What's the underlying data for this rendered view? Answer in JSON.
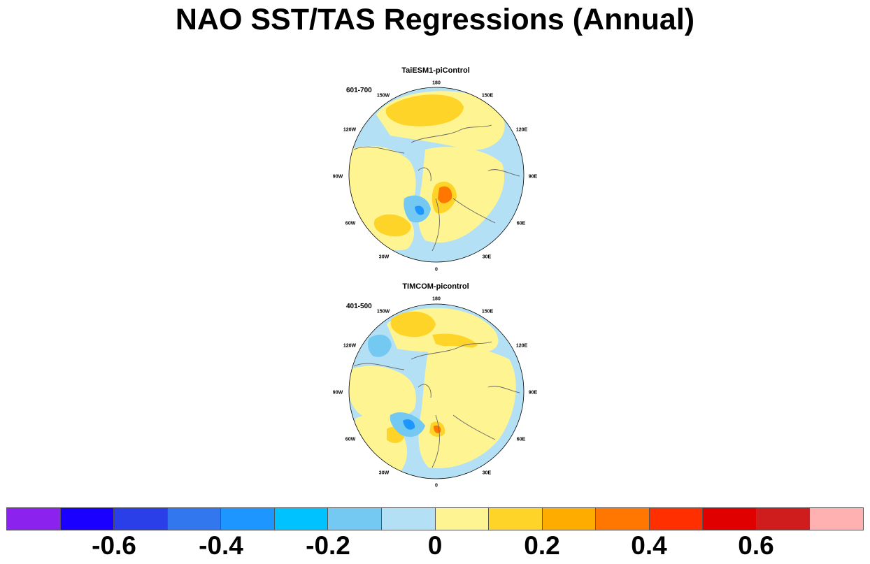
{
  "title": "NAO SST/TAS Regressions (Annual)",
  "panels": [
    {
      "name": "TaiESM1-piControl",
      "period": "601-700",
      "lon_labels": [
        "180",
        "150E",
        "120E",
        "90E",
        "60E",
        "30E",
        "0",
        "30W",
        "60W",
        "90W",
        "120W",
        "150W"
      ]
    },
    {
      "name": "TIMCOM-picontrol",
      "period": "401-500",
      "lon_labels": [
        "180",
        "150E",
        "120E",
        "90E",
        "60E",
        "30E",
        "0",
        "30W",
        "60W",
        "90W",
        "120W",
        "150W"
      ]
    }
  ],
  "colorbar": {
    "colors": [
      "#8b22ee",
      "#1a00ff",
      "#2b3fe8",
      "#3377ee",
      "#1e96ff",
      "#00c2ff",
      "#73c9f2",
      "#b3e0f5",
      "#fef592",
      "#ffd429",
      "#ffac00",
      "#ff7700",
      "#ff2f00",
      "#e00000",
      "#cf1c1c",
      "#ffb0b0"
    ],
    "labels": [
      "-0.6",
      "-0.4",
      "-0.2",
      "0",
      "0.2",
      "0.4",
      "0.6"
    ]
  },
  "palette": {
    "neg_weak": "#b3e0f5",
    "neg_mid": "#73c9f2",
    "neg_strong": "#1e96ff",
    "pos_weak": "#fef592",
    "pos_mid": "#ffd429",
    "pos_strong": "#ffac00",
    "pos_stronger": "#ff7700",
    "coast": "#666666"
  }
}
